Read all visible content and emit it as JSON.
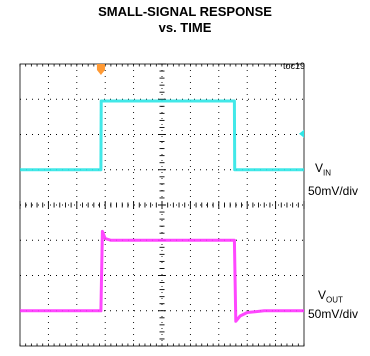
{
  "title": {
    "line1": "SMALL-SIGNAL RESPONSE",
    "line2": "vs. TIME"
  },
  "toc_label": "toc19",
  "colors": {
    "vin": "#2ee6e6",
    "vout": "#ff33ff",
    "trigger": "#ff9933",
    "grid": "#000000"
  },
  "channels": {
    "vin": {
      "name": "V",
      "sub": "IN",
      "scale": "50mV/div"
    },
    "vout": {
      "name": "V",
      "sub": "OUT",
      "scale": "50mV/div"
    }
  },
  "chart_data": {
    "type": "line",
    "grid": true,
    "x_divisions": 10,
    "y_divisions": 8,
    "xlim": [
      0,
      10
    ],
    "ylim": [
      0,
      8
    ],
    "series": [
      {
        "name": "VIN",
        "color": "#2ee6e6",
        "x": [
          0,
          2.85,
          2.86,
          7.55,
          7.56,
          10
        ],
        "y": [
          5.0,
          5.0,
          6.95,
          6.95,
          5.0,
          5.0
        ]
      },
      {
        "name": "VOUT",
        "color": "#ff33ff",
        "x": [
          0,
          2.85,
          2.9,
          3.0,
          3.2,
          7.55,
          7.6,
          7.75,
          8.0,
          8.6,
          10
        ],
        "y": [
          1.0,
          1.0,
          3.25,
          3.05,
          3.0,
          3.0,
          0.7,
          0.85,
          0.95,
          1.0,
          1.0
        ]
      }
    ]
  }
}
